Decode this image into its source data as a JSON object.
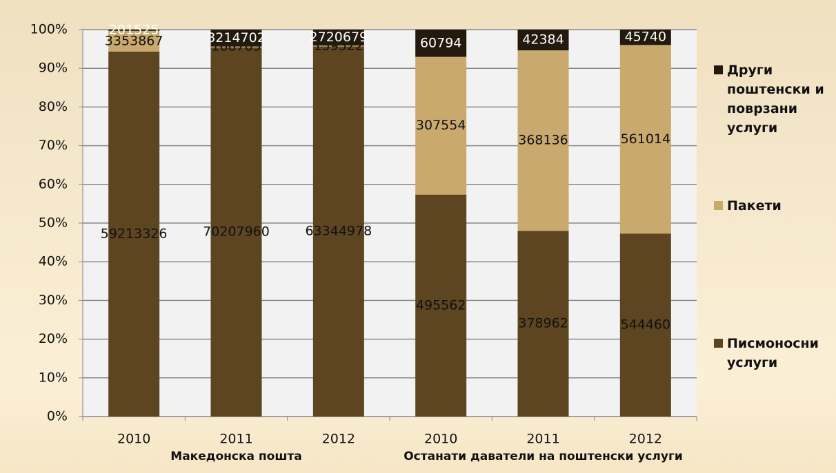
{
  "chart_data": {
    "type": "stacked_bar_100",
    "categories": [
      "2010",
      "2011",
      "2012",
      "2010",
      "2011",
      "2012"
    ],
    "group_labels": [
      "Македонска пошта",
      "Останати даватели на поштенски услуги"
    ],
    "series": [
      {
        "name": "Писмоносни услуги",
        "color": "#5c4520",
        "values": [
          59213326,
          70207960,
          63344978,
          495562,
          378962,
          544460
        ]
      },
      {
        "name": "Пакети",
        "color": "#c9a96e",
        "values": [
          3353867,
          168705,
          159522,
          307554,
          368136,
          561014
        ]
      },
      {
        "name": "Други поштенски и поврзани услуги",
        "color": "#231a0e",
        "values": [
          201525,
          3214702,
          2720679,
          60794,
          42384,
          45740
        ]
      }
    ],
    "ylim": [
      0,
      100
    ],
    "yticks": [
      {
        "value": 0,
        "label": "0%"
      },
      {
        "value": 10,
        "label": "10%"
      },
      {
        "value": 20,
        "label": "20%"
      },
      {
        "value": 30,
        "label": "30%"
      },
      {
        "value": 40,
        "label": "40%"
      },
      {
        "value": 50,
        "label": "50%"
      },
      {
        "value": 60,
        "label": "60%"
      },
      {
        "value": 70,
        "label": "70%"
      },
      {
        "value": 80,
        "label": "80%"
      },
      {
        "value": 90,
        "label": "90%"
      },
      {
        "value": 100,
        "label": "100%"
      }
    ],
    "grid": true
  }
}
